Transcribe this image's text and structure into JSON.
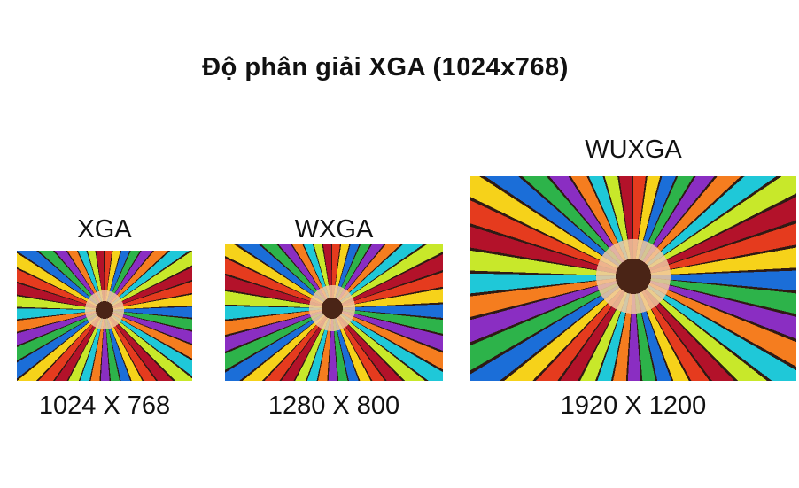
{
  "title": "Độ phân giải XGA (1024x768)",
  "resolutions": [
    {
      "name": "XGA",
      "size": "1024 X 768"
    },
    {
      "name": "WXGA",
      "size": "1280 X 800"
    },
    {
      "name": "WUXGA",
      "size": "1920 X 1200"
    }
  ]
}
